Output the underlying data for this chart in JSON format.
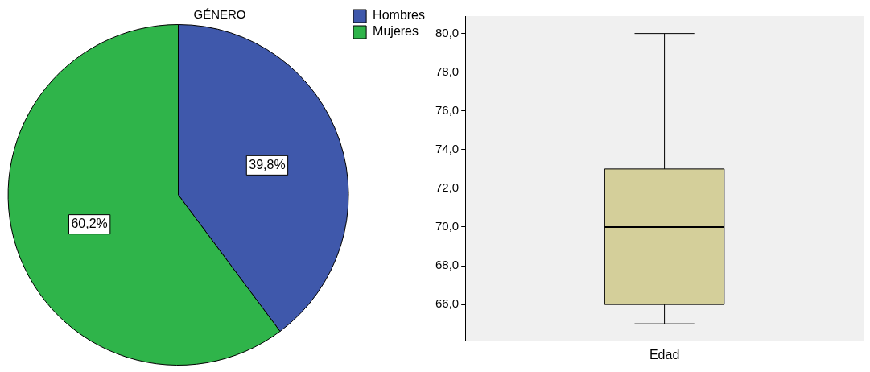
{
  "chart_data": [
    {
      "type": "pie",
      "title": "GÉNERO",
      "categories": [
        "Hombres",
        "Mujeres"
      ],
      "values": [
        39.8,
        60.2
      ],
      "colors": [
        "#3f58ab",
        "#2fb44a"
      ],
      "value_labels": [
        "39,8%",
        "60,2%"
      ],
      "legend": "top right"
    },
    {
      "type": "box",
      "categories": [
        "Edad"
      ],
      "color": "#d4cf9a",
      "boxes": [
        {
          "low": 65,
          "q1": 66,
          "median": 70,
          "q3": 73,
          "high": 80
        }
      ],
      "ylim": [
        64.1,
        80.9
      ],
      "yticks": [
        {
          "value": 66,
          "label": "66,0"
        },
        {
          "value": 68,
          "label": "68,0"
        },
        {
          "value": 70,
          "label": "70,0"
        },
        {
          "value": 72,
          "label": "72,0"
        },
        {
          "value": 74,
          "label": "74,0"
        },
        {
          "value": 76,
          "label": "76,0"
        },
        {
          "value": 78,
          "label": "78,0"
        },
        {
          "value": 80,
          "label": "80,0"
        }
      ],
      "grid": false,
      "legend": false
    }
  ]
}
